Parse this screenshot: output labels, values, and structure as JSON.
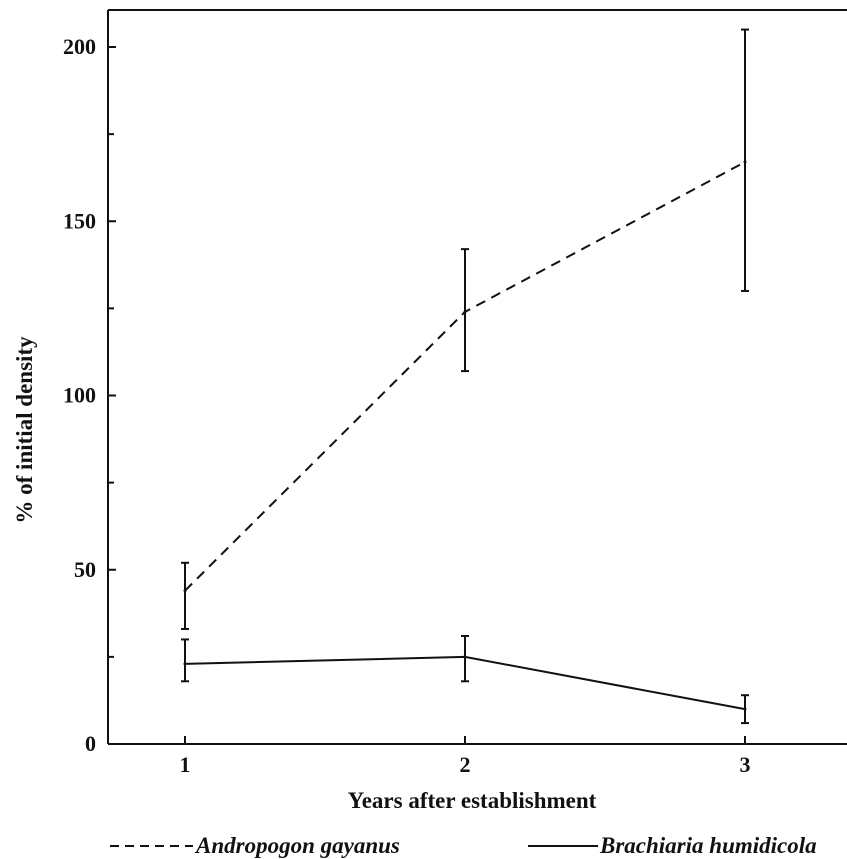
{
  "chart_data": {
    "type": "line",
    "title": "",
    "xlabel": "Years after establishment",
    "ylabel": "% of initial density",
    "x": [
      1,
      2,
      3
    ],
    "x_tick_labels": [
      "1",
      "2",
      "3"
    ],
    "xlim": [
      0.73,
      3.25
    ],
    "ylim": [
      0,
      210
    ],
    "y_ticks": [
      0,
      50,
      100,
      150,
      200
    ],
    "y_tick_labels": [
      "0",
      "50",
      "100",
      "150",
      "200"
    ],
    "y_minor_ticks": [
      25,
      75,
      125,
      175
    ],
    "grid": false,
    "legend_position": "bottom",
    "series": [
      {
        "name": "Andropogon gayanus",
        "line_style": "dashed",
        "values": [
          44,
          124,
          167
        ],
        "err_low": [
          33,
          107,
          130
        ],
        "err_high": [
          52,
          142,
          205
        ]
      },
      {
        "name": "Brachiaria humidicola",
        "line_style": "solid",
        "values": [
          23,
          25,
          10
        ],
        "err_low": [
          18,
          18,
          6
        ],
        "err_high": [
          30,
          31,
          14
        ]
      }
    ],
    "colors": {
      "ink": "#111111",
      "background": "#ffffff"
    }
  }
}
